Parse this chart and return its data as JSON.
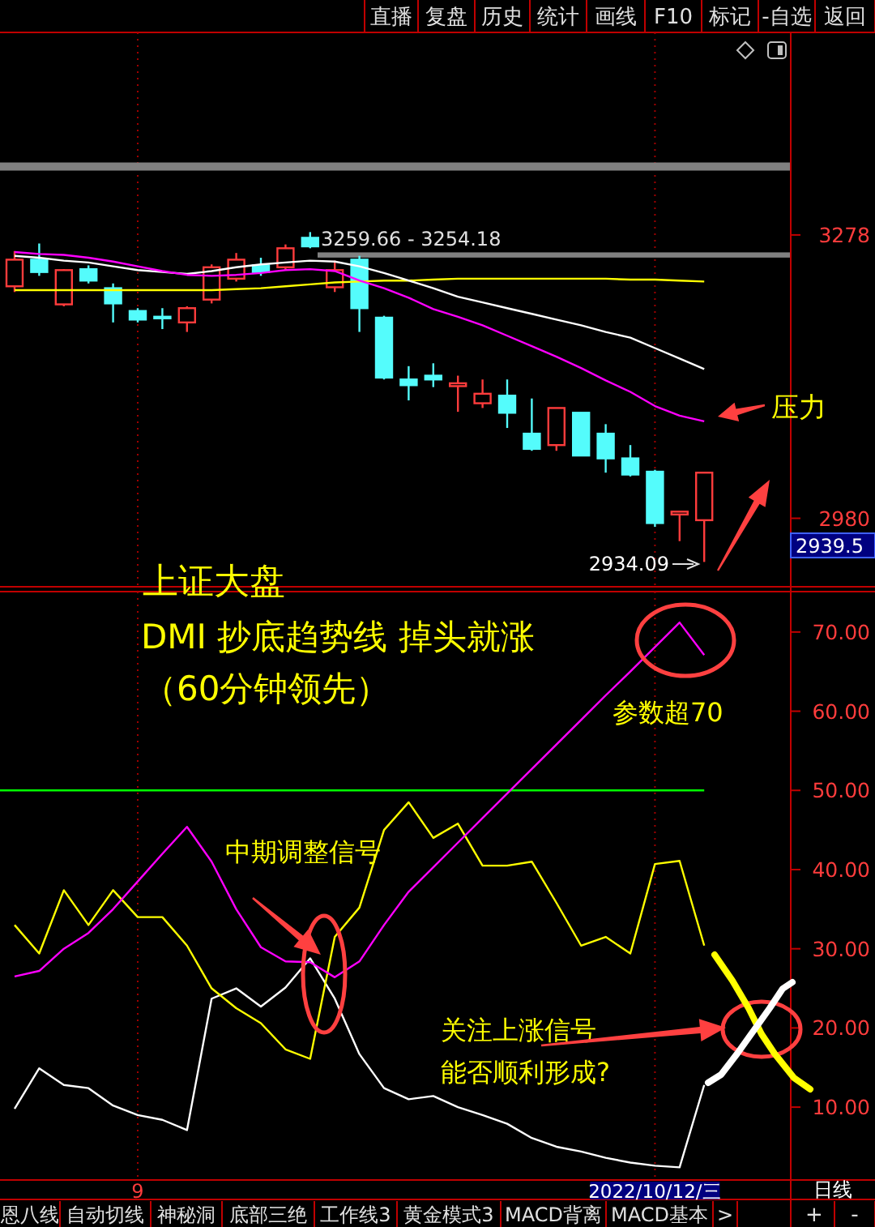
{
  "chart_data": [
    {
      "type": "candlestick",
      "categories": [
        null,
        null,
        null,
        null,
        null,
        null,
        null,
        null,
        null,
        null,
        null,
        null,
        null,
        null,
        null,
        null,
        null,
        null,
        null,
        null,
        null,
        null,
        null,
        null,
        null,
        null,
        null,
        null,
        null
      ],
      "ohlc": [
        [
          3224,
          3261,
          3218,
          3252
        ],
        [
          3252,
          3269,
          3235,
          3239
        ],
        [
          3205,
          3242,
          3203,
          3241
        ],
        [
          3242,
          3246,
          3227,
          3230
        ],
        [
          3222,
          3227,
          3186,
          3206
        ],
        [
          3198,
          3201,
          3186,
          3189
        ],
        [
          3192,
          3201,
          3179,
          3191
        ],
        [
          3186,
          3203,
          3176,
          3201
        ],
        [
          3210,
          3247,
          3206,
          3244
        ],
        [
          3232,
          3259,
          3229,
          3252
        ],
        [
          3246,
          3254,
          3235,
          3239
        ],
        [
          3244,
          3268,
          3241,
          3264
        ],
        [
          3275,
          3281,
          3264,
          3266
        ],
        [
          3223,
          3251,
          3218,
          3241
        ],
        [
          3252,
          3256,
          3176,
          3201
        ],
        [
          3191,
          3193,
          3126,
          3128
        ],
        [
          3126,
          3140,
          3104,
          3120
        ],
        [
          3130,
          3143,
          3118,
          3126
        ],
        [
          3119,
          3130,
          3092,
          3122
        ],
        [
          3101,
          3126,
          3096,
          3111
        ],
        [
          3109,
          3126,
          3075,
          3091
        ],
        [
          3069,
          3106,
          3051,
          3053
        ],
        [
          3057,
          3096,
          3051,
          3096
        ],
        [
          3091,
          3091,
          3046,
          3046
        ],
        [
          3069,
          3079,
          3028,
          3043
        ],
        [
          3043,
          3057,
          3024,
          3026
        ],
        [
          3029,
          3031,
          2971,
          2975
        ],
        [
          2984,
          2987,
          2956,
          2987
        ],
        [
          2978,
          3028,
          2934.09,
          3028
        ]
      ],
      "series": [
        {
          "type": "line",
          "color": "#ffff00",
          "values": [
            3220,
            3220,
            3220,
            3220,
            3220,
            3220,
            3220,
            3220,
            3220,
            3221,
            3222,
            3224,
            3226,
            3228,
            3229,
            3230,
            3230,
            3231,
            3232,
            3232,
            3232,
            3232,
            3232,
            3232,
            3232,
            3231,
            3231,
            3230,
            3229
          ]
        },
        {
          "type": "line",
          "color": "#ffffff",
          "values": [
            3256,
            3254,
            3251,
            3249,
            3245,
            3241,
            3239,
            3237,
            3240,
            3244,
            3247,
            3249,
            3251,
            3250,
            3245,
            3238,
            3230,
            3222,
            3213,
            3207,
            3201,
            3195,
            3189,
            3183,
            3176,
            3170,
            3159,
            3148,
            3137
          ]
        },
        {
          "type": "line",
          "color": "#ff00ff",
          "values": [
            3260,
            3258,
            3257,
            3254,
            3250,
            3245,
            3240,
            3236,
            3235,
            3236,
            3238,
            3241,
            3242,
            3240,
            3230,
            3222,
            3212,
            3200,
            3192,
            3183,
            3172,
            3161,
            3150,
            3138,
            3125,
            3113,
            3098,
            3088,
            3082
          ]
        }
      ],
      "ylim": [
        2908,
        3491
      ],
      "yticks": [
        3278,
        2980
      ],
      "tick_labels": "y",
      "grid": "x",
      "ref_lines": [
        {
          "axis": "y",
          "value": 3350,
          "color": "#808080"
        }
      ],
      "bands": [
        {
          "axis": "y",
          "from": 3254.18,
          "to": 3259.66,
          "label": "3259.66 - 3254.18",
          "color": "#808080"
        }
      ],
      "annotations": [
        "直播",
        "复盘",
        "历史",
        "统计",
        "画线",
        "F10",
        "标记",
        "-自选",
        "返回",
        "2934.09",
        "2939.5",
        "压力"
      ]
    },
    {
      "type": "line",
      "categories": [
        null,
        null,
        null,
        null,
        null,
        "9",
        null,
        null,
        null,
        null,
        null,
        null,
        null,
        null,
        null,
        null,
        null,
        null,
        null,
        null,
        null,
        null,
        null,
        null,
        null,
        null,
        "2022/10/12/三",
        null,
        null
      ],
      "series": [
        {
          "color": "#ffffff",
          "values": [
            9.8,
            14.9,
            12.8,
            12.4,
            10.2,
            9,
            8.4,
            7.1,
            23.7,
            25,
            22.7,
            25.1,
            28.8,
            23.7,
            16.7,
            12.4,
            11,
            11.4,
            10,
            9,
            7.9,
            6.1,
            5,
            4.4,
            3.6,
            3,
            2.6,
            2.4,
            12.8
          ]
        },
        {
          "color": "#ffff00",
          "values": [
            33,
            29.4,
            37.4,
            33,
            37.4,
            34,
            34,
            30.4,
            25,
            22.5,
            20.6,
            17.3,
            16.1,
            31.5,
            35.2,
            45,
            48.5,
            44,
            45.8,
            40.5,
            40.5,
            41,
            35.8,
            30.4,
            31.5,
            29.4,
            40.7,
            41.1,
            30.4
          ]
        },
        {
          "color": "#ff00ff",
          "values": [
            26.5,
            27.2,
            30,
            32,
            35,
            38.5,
            42,
            45.4,
            41,
            35,
            30.2,
            28.4,
            28.3,
            26.4,
            28.4,
            33,
            37.2,
            40.3,
            43.4,
            46.5,
            49.6,
            52.7,
            55.8,
            58.9,
            62,
            65,
            68.1,
            71.2,
            67.1
          ]
        }
      ],
      "ylim": [
        0.8,
        75.1
      ],
      "yticks": [
        {
          "value": 10,
          "label": "10.00"
        },
        {
          "value": 20,
          "label": "20.00"
        },
        {
          "value": 30,
          "label": "30.00"
        },
        {
          "value": 40,
          "label": "40.00"
        },
        {
          "value": 50,
          "label": "50.00"
        },
        {
          "value": 60,
          "label": "60.00"
        },
        {
          "value": 70,
          "label": "70.00"
        }
      ],
      "grid": "x",
      "ref_lines": [
        {
          "axis": "y",
          "value": 50,
          "color": "#00ff00"
        }
      ],
      "annotations": [
        "上证大盘",
        "DMI 抄底趋势线 掉头就涨",
        "（60分钟领先）",
        "参数超70",
        "中期调整信号",
        "关注上涨信号",
        "能否顺利形成?",
        "恩八线",
        "自动切线",
        "神秘洞",
        "底部三绝",
        "工作线3",
        "黄金模式3",
        "MACD背离",
        "MACD基本",
        ">",
        "日线",
        "+",
        "-"
      ]
    }
  ]
}
